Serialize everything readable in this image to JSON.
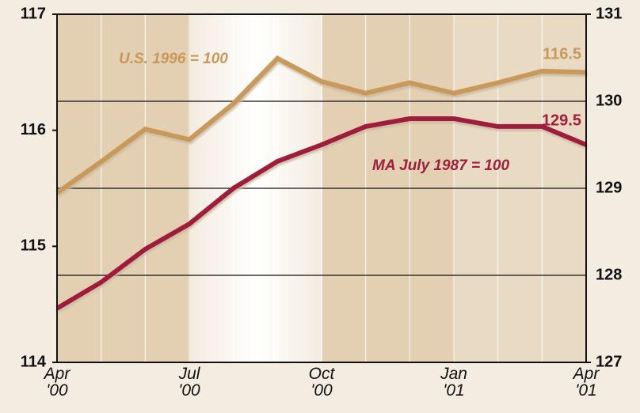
{
  "chart_data": {
    "type": "line",
    "categories": [
      "Apr\n'00",
      null,
      null,
      "Jul\n'00",
      null,
      null,
      "Oct\n'00",
      null,
      null,
      "Jan\n'01",
      null,
      null,
      "Apr\n'01"
    ],
    "series": [
      {
        "name": "U.S. 1996 = 100",
        "color": "#c8995a",
        "axis": "y",
        "values": [
          115.46,
          115.73,
          116.01,
          115.92,
          116.23,
          116.62,
          116.42,
          116.32,
          116.41,
          116.32,
          116.41,
          116.51,
          116.5
        ]
      },
      {
        "name": "MA July 1987 = 100",
        "color": "#a01e3c",
        "axis": "y2",
        "values": [
          127.62,
          127.92,
          128.3,
          128.59,
          129.0,
          129.31,
          129.5,
          129.71,
          129.8,
          129.8,
          129.71,
          129.71,
          129.5
        ]
      }
    ],
    "ylim": [
      114,
      117
    ],
    "yticks": [
      114,
      115,
      116,
      117
    ],
    "y2lim": [
      127,
      131
    ],
    "y2ticks": [
      127,
      128,
      129,
      130,
      131
    ],
    "grid": "y2"
  }
}
